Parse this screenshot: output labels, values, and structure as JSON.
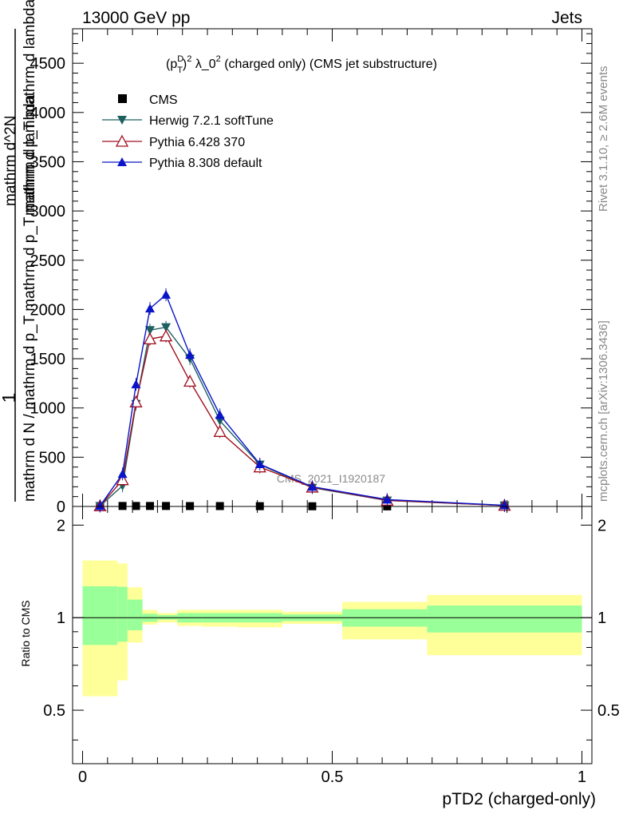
{
  "header": {
    "energy_label": "13000 GeV pp",
    "process_label": "Jets"
  },
  "side_labels": {
    "rivet": "Rivet 3.1.10, ≥ 2.6M events",
    "mcplots": "mcplots.cern.ch [arXiv:1306.3436]"
  },
  "chart_data": [
    {
      "type": "line",
      "title": "(p_T^D)^2 λ_0^2 (charged only) (CMS jet substructure)",
      "title_parts": {
        "p": "(p",
        "sub": "T",
        "sup": "D",
        "close": ")",
        "exp": "2",
        "lambda": " λ_0",
        "exp2": "2",
        "rest": " (charged only) (CMS jet substructure)"
      },
      "ylabel_top": "1",
      "ylabel_bottom": "mathrm d N / mathrm d p_T mathrm d p_T mathrm d lambda",
      "ylabel_right_num": "mathrm d^2N",
      "ylabel_right_den": "mathrm d p_T mathrm d lambda",
      "xlabel": "pTD2 (charged-only)",
      "watermark": "CMS_2021_I1920187",
      "ylim": [
        0,
        4850
      ],
      "xlim": [
        -0.02,
        1.02
      ],
      "yticks": [
        0,
        500,
        1000,
        1500,
        2000,
        2500,
        3000,
        3500,
        4000,
        4500
      ],
      "ytick_labels": [
        "0",
        "500",
        "1000",
        "1500",
        "2000",
        "2500",
        "3000",
        "3500",
        "4000",
        "4500"
      ],
      "legend_position": "top-left",
      "series": [
        {
          "name": "CMS",
          "color": "#000000",
          "marker": "square",
          "x": [
            0.035,
            0.08,
            0.107,
            0.135,
            0.167,
            0.215,
            0.275,
            0.355,
            0.46,
            0.61,
            0.845
          ],
          "values": [
            3,
            5,
            5,
            5,
            5,
            4,
            4,
            3,
            2,
            1,
            0.5
          ]
        },
        {
          "name": "Herwig 7.2.1 softTune",
          "color": "#1d6060",
          "marker": "triangle-down",
          "x": [
            0.035,
            0.08,
            0.107,
            0.135,
            0.167,
            0.215,
            0.275,
            0.355,
            0.46,
            0.61,
            0.845
          ],
          "values": [
            5,
            210,
            1040,
            1790,
            1820,
            1500,
            870,
            425,
            190,
            60,
            10
          ]
        },
        {
          "name": "Pythia 6.428 370",
          "color": "#a01020",
          "marker": "triangle-open",
          "x": [
            0.035,
            0.08,
            0.107,
            0.135,
            0.167,
            0.215,
            0.275,
            0.355,
            0.46,
            0.61,
            0.845
          ],
          "values": [
            5,
            270,
            1060,
            1700,
            1730,
            1270,
            760,
            400,
            195,
            62,
            10
          ]
        },
        {
          "name": "Pythia 8.308 default",
          "color": "#0a14c8",
          "marker": "triangle-up",
          "x": [
            0.035,
            0.08,
            0.107,
            0.135,
            0.167,
            0.215,
            0.275,
            0.355,
            0.46,
            0.61,
            0.845
          ],
          "values": [
            5,
            330,
            1240,
            2010,
            2150,
            1540,
            930,
            430,
            200,
            70,
            12
          ]
        }
      ]
    },
    {
      "type": "area",
      "ylabel": "Ratio to CMS",
      "ylim": [
        0.335,
        2.3
      ],
      "yticks": [
        0.5,
        1,
        2
      ],
      "ytick_labels": [
        "0.5",
        "1",
        "2"
      ],
      "xlim": [
        -0.02,
        1.02
      ],
      "xticks": [
        0,
        0.5,
        1
      ],
      "xtick_labels": [
        "0",
        "0.5",
        "1"
      ],
      "band_colors": {
        "inner": "#99ff99",
        "outer": "#ffff99"
      },
      "bins": [
        {
          "x0": 0.0,
          "x1": 0.07,
          "inner": [
            0.815,
            1.265
          ],
          "outer": [
            0.555,
            1.535
          ]
        },
        {
          "x0": 0.07,
          "x1": 0.09,
          "inner": [
            0.835,
            1.26
          ],
          "outer": [
            0.625,
            1.5
          ]
        },
        {
          "x0": 0.09,
          "x1": 0.12,
          "inner": [
            0.91,
            1.145
          ],
          "outer": [
            0.83,
            1.255
          ]
        },
        {
          "x0": 0.12,
          "x1": 0.15,
          "inner": [
            0.97,
            1.03
          ],
          "outer": [
            0.95,
            1.06
          ]
        },
        {
          "x0": 0.15,
          "x1": 0.19,
          "inner": [
            0.985,
            1.02
          ],
          "outer": [
            0.965,
            1.035
          ]
        },
        {
          "x0": 0.19,
          "x1": 0.24,
          "inner": [
            0.965,
            1.035
          ],
          "outer": [
            0.94,
            1.06
          ]
        },
        {
          "x0": 0.24,
          "x1": 0.31,
          "inner": [
            0.965,
            1.035
          ],
          "outer": [
            0.935,
            1.06
          ]
        },
        {
          "x0": 0.31,
          "x1": 0.4,
          "inner": [
            0.965,
            1.035
          ],
          "outer": [
            0.93,
            1.06
          ]
        },
        {
          "x0": 0.4,
          "x1": 0.52,
          "inner": [
            0.975,
            1.025
          ],
          "outer": [
            0.955,
            1.045
          ]
        },
        {
          "x0": 0.52,
          "x1": 0.69,
          "inner": [
            0.935,
            1.065
          ],
          "outer": [
            0.85,
            1.125
          ]
        },
        {
          "x0": 0.69,
          "x1": 1.0,
          "inner": [
            0.895,
            1.095
          ],
          "outer": [
            0.755,
            1.185
          ]
        }
      ]
    }
  ]
}
